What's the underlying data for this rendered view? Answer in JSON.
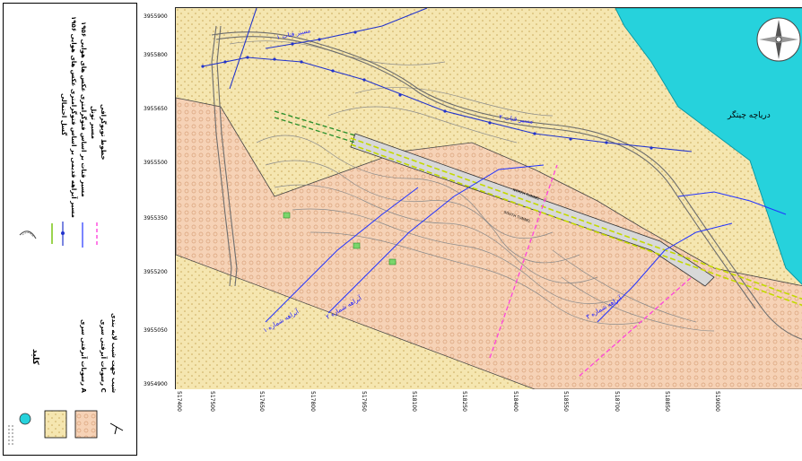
{
  "legend": {
    "section_title": "کلید",
    "items": [
      {
        "label": "خطوط توپوگرافی",
        "symbol": "topo-line"
      },
      {
        "label": "مسیر تونل",
        "symbol": "tunnel-route"
      },
      {
        "label": "مسیر قنات بر اساس فتوگرامتری عکس های هوایی ۱۹۵۶",
        "symbol": "qanat-route-dotted"
      },
      {
        "label": "مسیر آبراهه قدیمی بر اساس فتوگرامتری عکس های هوایی ۱۹۵۶",
        "symbol": "old-stream"
      },
      {
        "label": "گسل احتمالی",
        "symbol": "probable-fault"
      },
      {
        "label": "C رسوبات آبرفتی سری",
        "symbol": "alluvium-c"
      },
      {
        "label": "A رسوبات آبرفتی سری",
        "symbol": "alluvium-a"
      },
      {
        "label": "شیب جهت شیب لایه بندی",
        "symbol": "dip-symbol"
      }
    ]
  },
  "map": {
    "lake_label": "دریاچه چیتگر",
    "stream_labels": [
      "آبراهه شماره ۱",
      "آبراهه شماره ۲",
      "آبراهه شماره ۳"
    ],
    "qanat_labels": [
      "مسیر قنات ۱",
      "مسیر قنات ۲"
    ],
    "tunnel_labels": [
      "NORTH TUNNEL",
      "SOUTH TUNNEL"
    ],
    "y_ticks": [
      "3955900",
      "3955800",
      "3955650",
      "3955500",
      "3955350",
      "3955200",
      "3955050",
      "3954900"
    ],
    "x_ticks": [
      "517400",
      "517500",
      "517650",
      "517800",
      "517950",
      "518100",
      "518250",
      "518400",
      "518550",
      "518700",
      "518850",
      "519000"
    ],
    "colors": {
      "lake": "#26d2dc",
      "alluvium_c": "#f5e6b0",
      "alluvium_a": "#f6d2b6",
      "stream": "#2233ff",
      "tunnel": "#c3d900",
      "fault": "#ff44dd"
    }
  }
}
